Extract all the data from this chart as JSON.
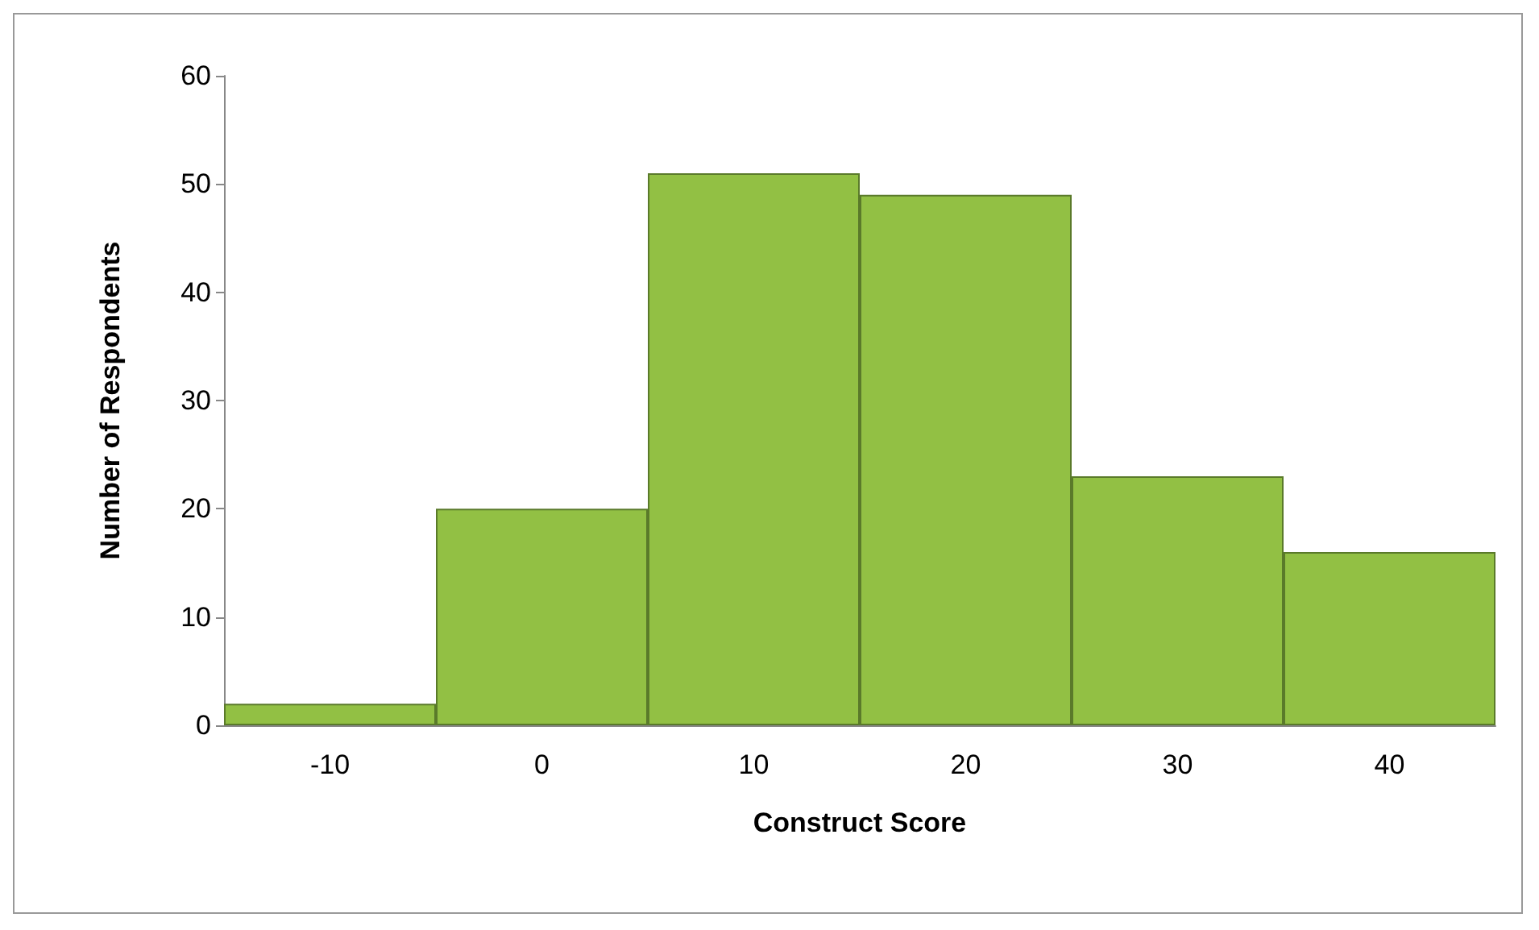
{
  "chart_data": {
    "type": "bar",
    "xlabel": "Construct Score",
    "ylabel": "Number of Respondents",
    "categories": [
      "-10",
      "0",
      "10",
      "20",
      "30",
      "40"
    ],
    "values": [
      2,
      20,
      51,
      49,
      23,
      16
    ],
    "color": "#92c044",
    "ylim": [
      0,
      60
    ],
    "yticks": [
      0,
      10,
      20,
      30,
      40,
      50,
      60
    ],
    "grid": false
  }
}
